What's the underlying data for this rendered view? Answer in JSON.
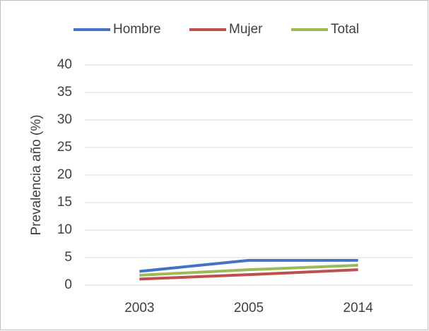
{
  "chart_data": {
    "type": "line",
    "y_label": "Prevalencia año (%)",
    "categories": [
      "2003",
      "2005",
      "2014"
    ],
    "series": [
      {
        "name": "Hombre",
        "color": "#4472c4",
        "values": [
          2.5,
          4.5,
          4.5
        ]
      },
      {
        "name": "Mujer",
        "color": "#c0504d",
        "values": [
          1.1,
          1.9,
          2.8
        ]
      },
      {
        "name": "Total",
        "color": "#9bbb59",
        "values": [
          1.8,
          2.8,
          3.6
        ]
      }
    ],
    "ylim": [
      0,
      40
    ],
    "yticks": [
      0,
      5,
      10,
      15,
      20,
      25,
      30,
      35,
      40
    ],
    "grid": true,
    "legend": "top"
  }
}
